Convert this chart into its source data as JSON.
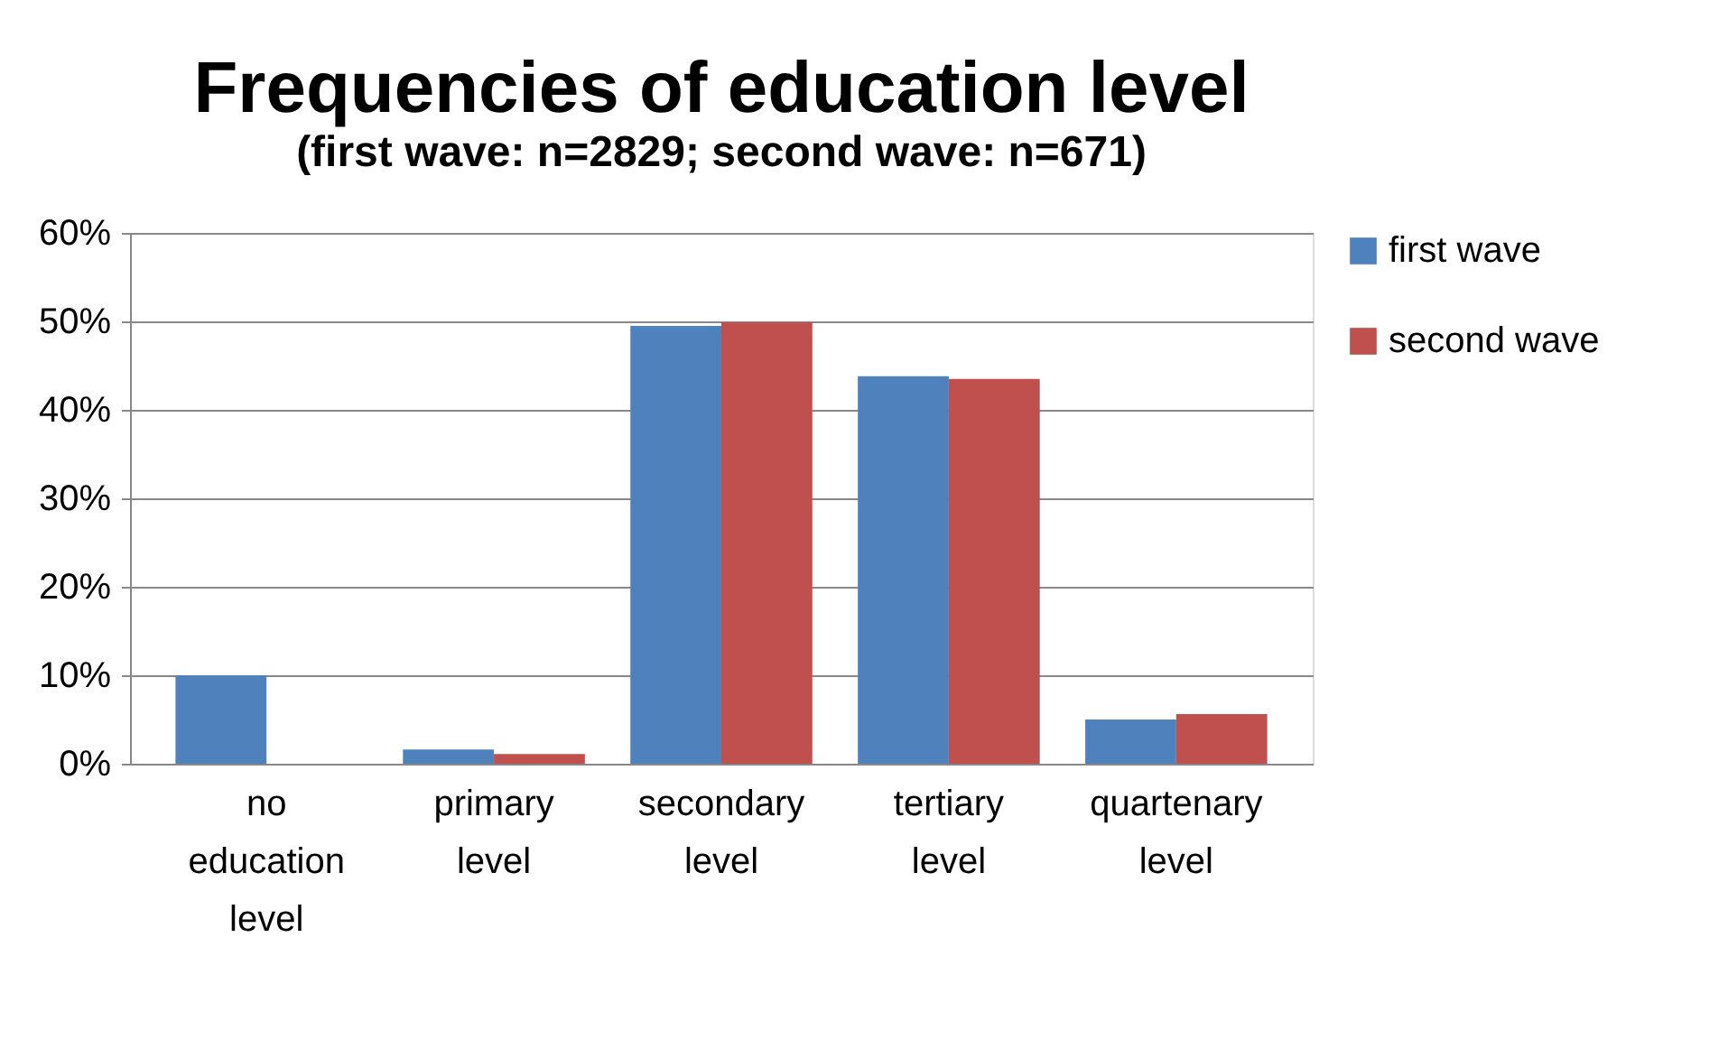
{
  "chart_data": {
    "type": "bar",
    "title": "Frequencies of education level",
    "subtitle": "(first wave: n=2829; second wave: n=671)",
    "categories": [
      "no education level",
      "primary level",
      "secondary level",
      "tertiary level",
      "quartenary level"
    ],
    "series": [
      {
        "name": "first wave",
        "color": "#4f81bd",
        "values": [
          10,
          1.6,
          49.5,
          43.8,
          5.0
        ]
      },
      {
        "name": "second wave",
        "color": "#c0504d",
        "values": [
          0,
          1.1,
          49.9,
          43.5,
          5.6
        ]
      }
    ],
    "ylim": [
      0,
      60
    ],
    "yticks": [
      {
        "value": 0,
        "label": "0%"
      },
      {
        "value": 10,
        "label": "10%"
      },
      {
        "value": 20,
        "label": "20%"
      },
      {
        "value": 30,
        "label": "30%"
      },
      {
        "value": 40,
        "label": "40%"
      },
      {
        "value": 50,
        "label": "50%"
      },
      {
        "value": 60,
        "label": "60%"
      }
    ],
    "grid": "y",
    "legend": "right"
  }
}
